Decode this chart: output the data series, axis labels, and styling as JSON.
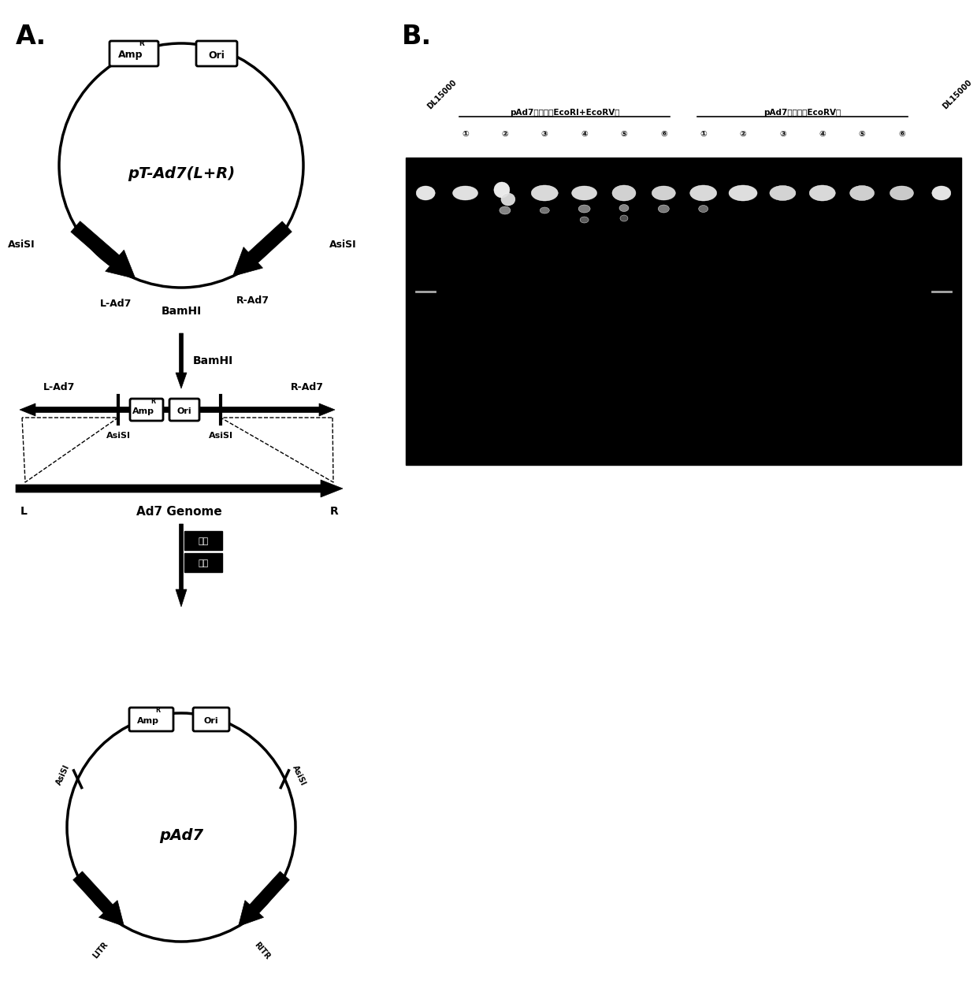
{
  "panel_A_label": "A.",
  "panel_B_label": "B.",
  "background_color": "#ffffff",
  "top_circle_label": "pT-Ad7(L+R)",
  "bottom_circle_label": "pAd7",
  "double_cut_label": "pAd7双酶切（EcoRI+EcoRV）",
  "single_cut_label": "pAd7单酶切（EcoRV）",
  "marker_label": "DL15000",
  "lane_numbers": [
    "①",
    "②",
    "③",
    "④",
    "⑤",
    "⑥"
  ],
  "bam_hi": "BamHI",
  "ad7_genome": "Ad7 Genome",
  "rec_text1": "同源",
  "rec_text2": "重组"
}
